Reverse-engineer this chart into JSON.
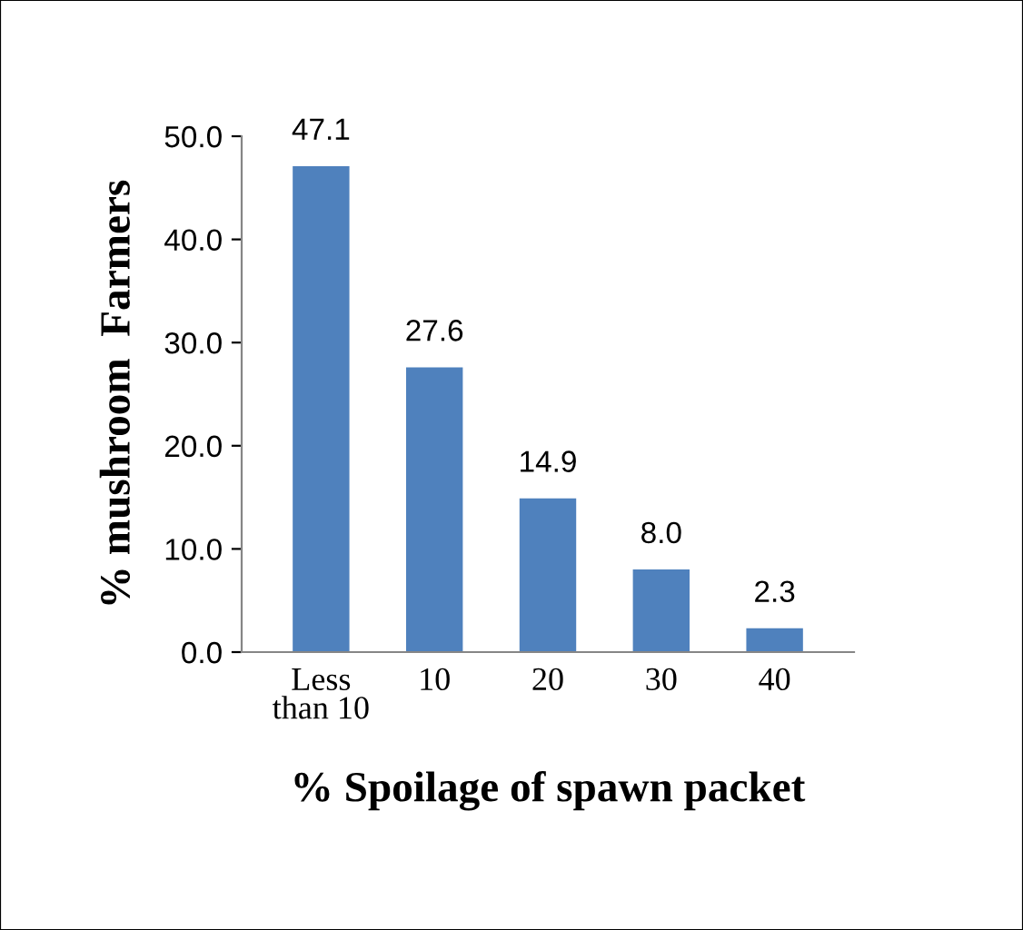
{
  "chart_data": {
    "type": "bar",
    "xlabel": "% Spoilage of spawn packet",
    "ylabel": "% mushroom  Farmers",
    "categories": [
      "Less\nthan 10",
      "10",
      "20",
      "30",
      "40"
    ],
    "values": [
      47.1,
      27.6,
      14.9,
      8.0,
      2.3
    ],
    "value_labels": [
      "47.1",
      "27.6",
      "14.9",
      "8.0",
      "2.3"
    ],
    "color": "#4f81bd",
    "ylim": [
      0,
      50
    ],
    "yticks": [
      {
        "value": 0,
        "label": "0.0"
      },
      {
        "value": 10,
        "label": "10.0"
      },
      {
        "value": 20,
        "label": "20.0"
      },
      {
        "value": 30,
        "label": "30.0"
      },
      {
        "value": 40,
        "label": "40.0"
      },
      {
        "value": 50,
        "label": "50.0"
      }
    ],
    "grid": false,
    "legend": false
  }
}
